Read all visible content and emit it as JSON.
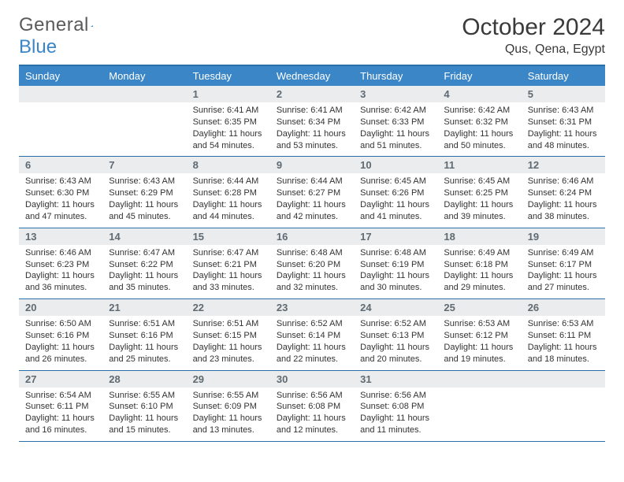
{
  "brand": {
    "part1": "General",
    "part2": "Blue"
  },
  "title": {
    "month": "October 2024",
    "location": "Qus, Qena, Egypt"
  },
  "colors": {
    "header_bg": "#3b86c6",
    "header_text": "#ffffff",
    "border": "#2a6fa8",
    "daynum_bg": "#ebeced",
    "daynum_text": "#5f6a72",
    "body_text": "#333333",
    "page_bg": "#ffffff"
  },
  "day_labels": [
    "Sunday",
    "Monday",
    "Tuesday",
    "Wednesday",
    "Thursday",
    "Friday",
    "Saturday"
  ],
  "weeks": [
    [
      {
        "n": "",
        "sr": "",
        "ss": "",
        "dl": ""
      },
      {
        "n": "",
        "sr": "",
        "ss": "",
        "dl": ""
      },
      {
        "n": "1",
        "sr": "Sunrise: 6:41 AM",
        "ss": "Sunset: 6:35 PM",
        "dl": "Daylight: 11 hours and 54 minutes."
      },
      {
        "n": "2",
        "sr": "Sunrise: 6:41 AM",
        "ss": "Sunset: 6:34 PM",
        "dl": "Daylight: 11 hours and 53 minutes."
      },
      {
        "n": "3",
        "sr": "Sunrise: 6:42 AM",
        "ss": "Sunset: 6:33 PM",
        "dl": "Daylight: 11 hours and 51 minutes."
      },
      {
        "n": "4",
        "sr": "Sunrise: 6:42 AM",
        "ss": "Sunset: 6:32 PM",
        "dl": "Daylight: 11 hours and 50 minutes."
      },
      {
        "n": "5",
        "sr": "Sunrise: 6:43 AM",
        "ss": "Sunset: 6:31 PM",
        "dl": "Daylight: 11 hours and 48 minutes."
      }
    ],
    [
      {
        "n": "6",
        "sr": "Sunrise: 6:43 AM",
        "ss": "Sunset: 6:30 PM",
        "dl": "Daylight: 11 hours and 47 minutes."
      },
      {
        "n": "7",
        "sr": "Sunrise: 6:43 AM",
        "ss": "Sunset: 6:29 PM",
        "dl": "Daylight: 11 hours and 45 minutes."
      },
      {
        "n": "8",
        "sr": "Sunrise: 6:44 AM",
        "ss": "Sunset: 6:28 PM",
        "dl": "Daylight: 11 hours and 44 minutes."
      },
      {
        "n": "9",
        "sr": "Sunrise: 6:44 AM",
        "ss": "Sunset: 6:27 PM",
        "dl": "Daylight: 11 hours and 42 minutes."
      },
      {
        "n": "10",
        "sr": "Sunrise: 6:45 AM",
        "ss": "Sunset: 6:26 PM",
        "dl": "Daylight: 11 hours and 41 minutes."
      },
      {
        "n": "11",
        "sr": "Sunrise: 6:45 AM",
        "ss": "Sunset: 6:25 PM",
        "dl": "Daylight: 11 hours and 39 minutes."
      },
      {
        "n": "12",
        "sr": "Sunrise: 6:46 AM",
        "ss": "Sunset: 6:24 PM",
        "dl": "Daylight: 11 hours and 38 minutes."
      }
    ],
    [
      {
        "n": "13",
        "sr": "Sunrise: 6:46 AM",
        "ss": "Sunset: 6:23 PM",
        "dl": "Daylight: 11 hours and 36 minutes."
      },
      {
        "n": "14",
        "sr": "Sunrise: 6:47 AM",
        "ss": "Sunset: 6:22 PM",
        "dl": "Daylight: 11 hours and 35 minutes."
      },
      {
        "n": "15",
        "sr": "Sunrise: 6:47 AM",
        "ss": "Sunset: 6:21 PM",
        "dl": "Daylight: 11 hours and 33 minutes."
      },
      {
        "n": "16",
        "sr": "Sunrise: 6:48 AM",
        "ss": "Sunset: 6:20 PM",
        "dl": "Daylight: 11 hours and 32 minutes."
      },
      {
        "n": "17",
        "sr": "Sunrise: 6:48 AM",
        "ss": "Sunset: 6:19 PM",
        "dl": "Daylight: 11 hours and 30 minutes."
      },
      {
        "n": "18",
        "sr": "Sunrise: 6:49 AM",
        "ss": "Sunset: 6:18 PM",
        "dl": "Daylight: 11 hours and 29 minutes."
      },
      {
        "n": "19",
        "sr": "Sunrise: 6:49 AM",
        "ss": "Sunset: 6:17 PM",
        "dl": "Daylight: 11 hours and 27 minutes."
      }
    ],
    [
      {
        "n": "20",
        "sr": "Sunrise: 6:50 AM",
        "ss": "Sunset: 6:16 PM",
        "dl": "Daylight: 11 hours and 26 minutes."
      },
      {
        "n": "21",
        "sr": "Sunrise: 6:51 AM",
        "ss": "Sunset: 6:16 PM",
        "dl": "Daylight: 11 hours and 25 minutes."
      },
      {
        "n": "22",
        "sr": "Sunrise: 6:51 AM",
        "ss": "Sunset: 6:15 PM",
        "dl": "Daylight: 11 hours and 23 minutes."
      },
      {
        "n": "23",
        "sr": "Sunrise: 6:52 AM",
        "ss": "Sunset: 6:14 PM",
        "dl": "Daylight: 11 hours and 22 minutes."
      },
      {
        "n": "24",
        "sr": "Sunrise: 6:52 AM",
        "ss": "Sunset: 6:13 PM",
        "dl": "Daylight: 11 hours and 20 minutes."
      },
      {
        "n": "25",
        "sr": "Sunrise: 6:53 AM",
        "ss": "Sunset: 6:12 PM",
        "dl": "Daylight: 11 hours and 19 minutes."
      },
      {
        "n": "26",
        "sr": "Sunrise: 6:53 AM",
        "ss": "Sunset: 6:11 PM",
        "dl": "Daylight: 11 hours and 18 minutes."
      }
    ],
    [
      {
        "n": "27",
        "sr": "Sunrise: 6:54 AM",
        "ss": "Sunset: 6:11 PM",
        "dl": "Daylight: 11 hours and 16 minutes."
      },
      {
        "n": "28",
        "sr": "Sunrise: 6:55 AM",
        "ss": "Sunset: 6:10 PM",
        "dl": "Daylight: 11 hours and 15 minutes."
      },
      {
        "n": "29",
        "sr": "Sunrise: 6:55 AM",
        "ss": "Sunset: 6:09 PM",
        "dl": "Daylight: 11 hours and 13 minutes."
      },
      {
        "n": "30",
        "sr": "Sunrise: 6:56 AM",
        "ss": "Sunset: 6:08 PM",
        "dl": "Daylight: 11 hours and 12 minutes."
      },
      {
        "n": "31",
        "sr": "Sunrise: 6:56 AM",
        "ss": "Sunset: 6:08 PM",
        "dl": "Daylight: 11 hours and 11 minutes."
      },
      {
        "n": "",
        "sr": "",
        "ss": "",
        "dl": ""
      },
      {
        "n": "",
        "sr": "",
        "ss": "",
        "dl": ""
      }
    ]
  ]
}
